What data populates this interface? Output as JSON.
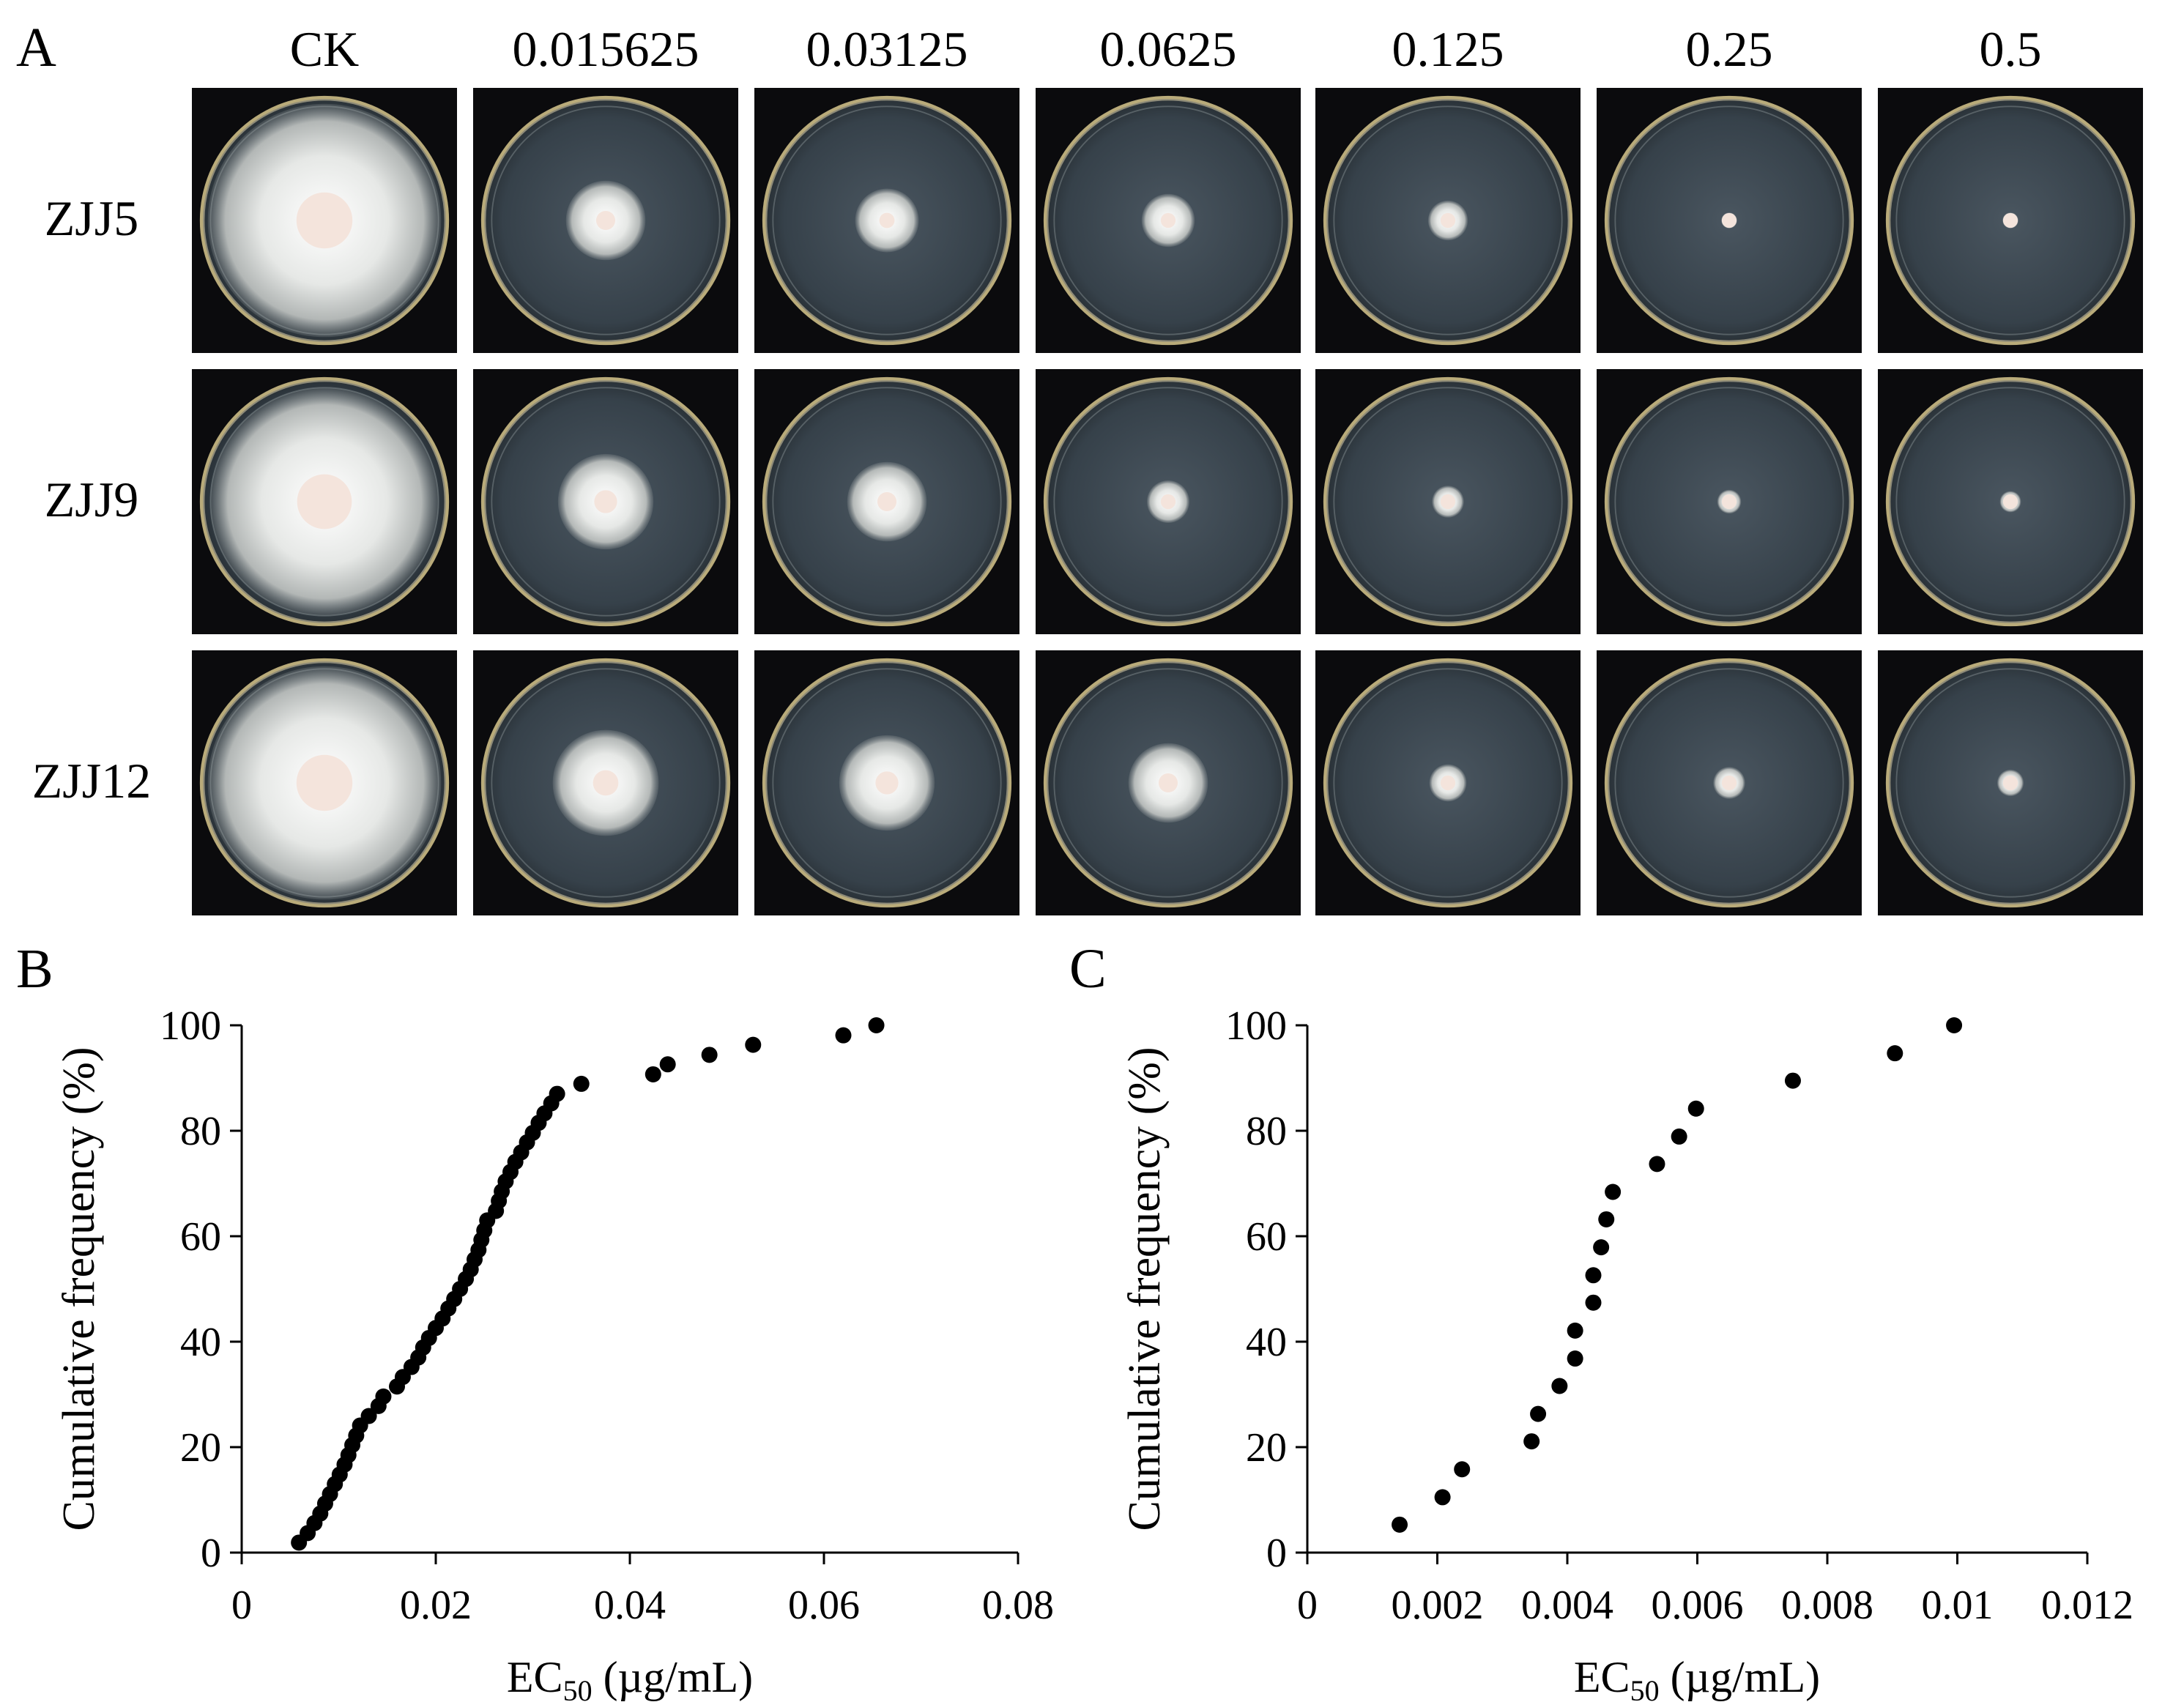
{
  "panel_labels": {
    "a": "A",
    "b": "B",
    "c": "C"
  },
  "plates": {
    "columns": [
      "CK",
      "0.015625",
      "0.03125",
      "0.0625",
      "0.125",
      "0.25",
      "0.5"
    ],
    "rows": [
      "ZJJ5",
      "ZJJ9",
      "ZJJ12"
    ],
    "colony_diameter_fraction": [
      [
        0.88,
        0.3,
        0.24,
        0.2,
        0.15,
        0.06,
        0.06
      ],
      [
        0.86,
        0.36,
        0.3,
        0.16,
        0.12,
        0.09,
        0.08
      ],
      [
        0.88,
        0.4,
        0.36,
        0.3,
        0.14,
        0.12,
        0.1
      ]
    ]
  },
  "chart_data": [
    {
      "type": "scatter",
      "panel": "B",
      "title": "",
      "xlabel": "EC",
      "xlabel_sub": "50",
      "xlabel_unit": " (µg/mL)",
      "ylabel": "Cumulative frequency (%)",
      "xlim": [
        0,
        0.08
      ],
      "ylim": [
        0,
        100
      ],
      "xticks": [
        0,
        0.02,
        0.04,
        0.06,
        0.08
      ],
      "xtick_labels": [
        "0",
        "0.02",
        "0.04",
        "0.06",
        "0.08"
      ],
      "yticks": [
        0,
        20,
        40,
        60,
        80,
        100
      ],
      "ytick_labels": [
        "0",
        "20",
        "40",
        "60",
        "80",
        "100"
      ],
      "x": [
        0.0059,
        0.0068,
        0.0075,
        0.0081,
        0.0086,
        0.0091,
        0.0096,
        0.0101,
        0.0106,
        0.011,
        0.0114,
        0.0118,
        0.0122,
        0.0131,
        0.0141,
        0.0146,
        0.016,
        0.0166,
        0.0175,
        0.0182,
        0.0187,
        0.0193,
        0.02,
        0.0207,
        0.0213,
        0.0219,
        0.0225,
        0.0231,
        0.0236,
        0.024,
        0.0244,
        0.0247,
        0.025,
        0.0253,
        0.0262,
        0.0265,
        0.0268,
        0.0272,
        0.0277,
        0.0282,
        0.0288,
        0.0294,
        0.03,
        0.0306,
        0.0312,
        0.0319,
        0.0325,
        0.035,
        0.0424,
        0.0439,
        0.0482,
        0.0527,
        0.062,
        0.0654
      ],
      "y": [
        1.9,
        3.7,
        5.6,
        7.4,
        9.3,
        11.1,
        13.0,
        14.8,
        16.7,
        18.5,
        20.4,
        22.2,
        24.1,
        25.9,
        27.8,
        29.6,
        31.5,
        33.3,
        35.2,
        37.0,
        38.9,
        40.7,
        42.6,
        44.4,
        46.3,
        48.1,
        50.0,
        51.9,
        53.7,
        55.6,
        57.4,
        59.3,
        61.1,
        63.0,
        64.8,
        66.7,
        68.5,
        70.4,
        72.2,
        74.1,
        75.9,
        77.8,
        79.6,
        81.5,
        83.3,
        85.2,
        87.0,
        88.9,
        90.7,
        92.6,
        94.4,
        96.3,
        98.1,
        100.0
      ]
    },
    {
      "type": "scatter",
      "panel": "C",
      "title": "",
      "xlabel": "EC",
      "xlabel_sub": "50",
      "xlabel_unit": " (µg/mL)",
      "ylabel": "Cumulative frequency (%)",
      "xlim": [
        0,
        0.012
      ],
      "ylim": [
        0,
        100
      ],
      "xticks": [
        0,
        0.002,
        0.004,
        0.006,
        0.008,
        0.01,
        0.012
      ],
      "xtick_labels": [
        "0",
        "0.002",
        "0.004",
        "0.006",
        "0.008",
        "0.01",
        "0.012"
      ],
      "yticks": [
        0,
        20,
        40,
        60,
        80,
        100
      ],
      "ytick_labels": [
        "0",
        "20",
        "40",
        "60",
        "80",
        "100"
      ],
      "x": [
        0.00142,
        0.00208,
        0.00238,
        0.00345,
        0.00355,
        0.00388,
        0.00412,
        0.00412,
        0.0044,
        0.0044,
        0.00452,
        0.0046,
        0.0047,
        0.00538,
        0.00572,
        0.00598,
        0.00747,
        0.00904,
        0.00995
      ],
      "y": [
        5.3,
        10.5,
        15.8,
        21.1,
        26.3,
        31.6,
        36.8,
        42.1,
        47.4,
        52.6,
        57.9,
        63.2,
        68.4,
        73.7,
        78.9,
        84.2,
        89.5,
        94.7,
        100.0
      ]
    }
  ]
}
